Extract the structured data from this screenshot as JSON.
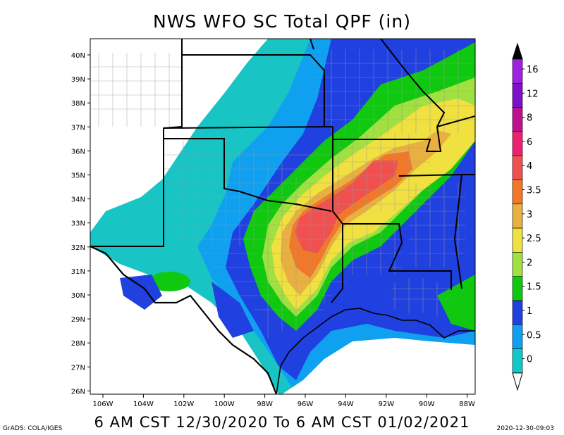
{
  "title": "NWS WFO SC Total QPF (in)",
  "subtitle": "6 AM CST 12/30/2020 To 6 AM CST 01/02/2021",
  "credit": "GrADS: COLA/IGES",
  "timestamp": "2020-12-30-09:03",
  "lat_labels": [
    "40N",
    "39N",
    "38N",
    "37N",
    "36N",
    "35N",
    "34N",
    "33N",
    "32N",
    "31N",
    "30N",
    "29N",
    "28N",
    "27N",
    "26N"
  ],
  "lon_labels": [
    "106W",
    "104W",
    "102W",
    "100W",
    "98W",
    "96W",
    "94W",
    "92W",
    "90W",
    "88W"
  ],
  "legend": {
    "labels": [
      "16",
      "12",
      "8",
      "6",
      "4",
      "3.5",
      "3",
      "2.5",
      "2",
      "1.5",
      "1",
      "0.5",
      "0"
    ],
    "colors": [
      "#a020e0",
      "#7d10c8",
      "#c01090",
      "#f02070",
      "#f05050",
      "#f07828",
      "#e8b040",
      "#f0e040",
      "#a0e040",
      "#10c810",
      "#2040e0",
      "#10a0f0",
      "#10c8c8"
    ]
  },
  "colors": {
    "c0": "#ffffff",
    "c05": "#18c4c4",
    "c1": "#10a0f0",
    "c15": "#2040e0",
    "c2": "#10c810",
    "c25": "#a0e040",
    "c3": "#f0e040",
    "c35": "#e8b040",
    "c4": "#f07828",
    "c6": "#f05050"
  }
}
